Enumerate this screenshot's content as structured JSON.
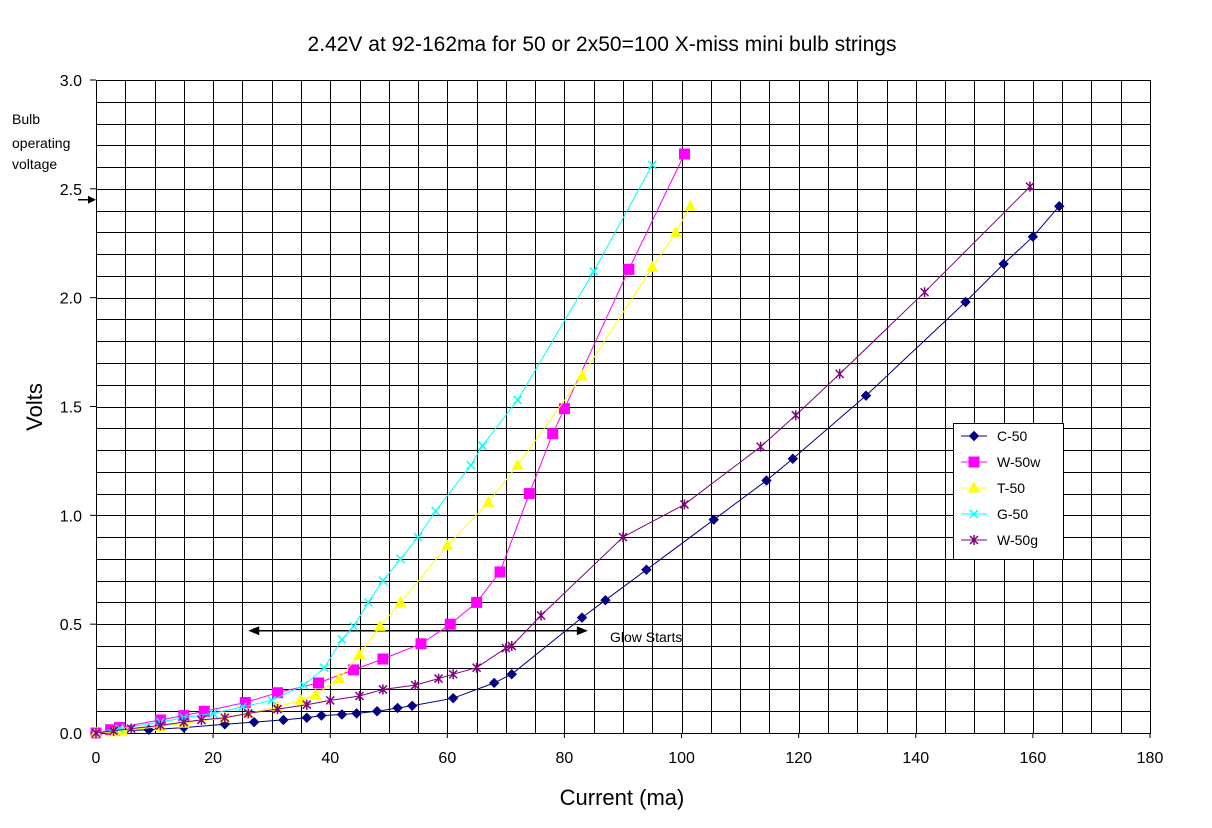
{
  "chart_data": {
    "type": "line",
    "title": "2.42V at 92-162ma for 50 or 2x50=100 X-miss mini bulb strings",
    "xlabel": "Current (ma)",
    "ylabel": "Volts",
    "xlim": [
      0,
      180
    ],
    "ylim": [
      0,
      3.0
    ],
    "x_ticks": [
      0,
      20,
      40,
      60,
      80,
      100,
      120,
      140,
      160,
      180
    ],
    "y_ticks": [
      "0.0",
      "0.5",
      "1.0",
      "1.5",
      "2.0",
      "2.5",
      "3.0"
    ],
    "grid": true,
    "legend_position": "right",
    "annotations": {
      "bulb_voltage_label": [
        "Bulb",
        "operating",
        "voltage"
      ],
      "bulb_voltage_value": 2.45,
      "glow_starts_label": "Glow Starts",
      "glow_starts_range": [
        26,
        84
      ],
      "glow_starts_y": 0.47
    },
    "series": [
      {
        "name": "C-50",
        "color": "#000080",
        "marker": "diamond",
        "points": [
          [
            0,
            0
          ],
          [
            4,
            0.01
          ],
          [
            9,
            0.015
          ],
          [
            15,
            0.025
          ],
          [
            22,
            0.04
          ],
          [
            27,
            0.05
          ],
          [
            32,
            0.06
          ],
          [
            36,
            0.07
          ],
          [
            38.5,
            0.08
          ],
          [
            42,
            0.085
          ],
          [
            44.5,
            0.09
          ],
          [
            48,
            0.1
          ],
          [
            51.5,
            0.115
          ],
          [
            54,
            0.125
          ],
          [
            61,
            0.16
          ],
          [
            68,
            0.23
          ],
          [
            71,
            0.27
          ],
          [
            83,
            0.53
          ],
          [
            87,
            0.61
          ],
          [
            94,
            0.75
          ],
          [
            105.5,
            0.98
          ],
          [
            114.5,
            1.16
          ],
          [
            119,
            1.26
          ],
          [
            131.5,
            1.55
          ],
          [
            148.5,
            1.98
          ],
          [
            155,
            2.155
          ],
          [
            160,
            2.28
          ],
          [
            164.5,
            2.42
          ]
        ]
      },
      {
        "name": "W-50w",
        "color": "#ff00ff",
        "marker": "square",
        "points": [
          [
            0,
            0
          ],
          [
            2.5,
            0.015
          ],
          [
            4,
            0.025
          ],
          [
            11,
            0.06
          ],
          [
            15,
            0.08
          ],
          [
            18.5,
            0.1
          ],
          [
            25.5,
            0.14
          ],
          [
            31,
            0.185
          ],
          [
            38,
            0.23
          ],
          [
            44,
            0.29
          ],
          [
            49,
            0.34
          ],
          [
            55.5,
            0.41
          ],
          [
            60.5,
            0.5
          ],
          [
            65,
            0.6
          ],
          [
            69,
            0.74
          ],
          [
            74,
            1.1
          ],
          [
            78,
            1.375
          ],
          [
            80,
            1.49
          ],
          [
            91,
            2.13
          ],
          [
            100.5,
            2.66
          ]
        ]
      },
      {
        "name": "T-50",
        "color": "#ffff00",
        "marker": "triangle",
        "points": [
          [
            0,
            0
          ],
          [
            3,
            0.005
          ],
          [
            4.5,
            0.01
          ],
          [
            11,
            0.03
          ],
          [
            15,
            0.045
          ],
          [
            22,
            0.07
          ],
          [
            26,
            0.09
          ],
          [
            31,
            0.12
          ],
          [
            35,
            0.15
          ],
          [
            37.5,
            0.175
          ],
          [
            41.5,
            0.25
          ],
          [
            45,
            0.36
          ],
          [
            48.5,
            0.49
          ],
          [
            52,
            0.6
          ],
          [
            60,
            0.86
          ],
          [
            67,
            1.06
          ],
          [
            72,
            1.23
          ],
          [
            83,
            1.64
          ],
          [
            95,
            2.14
          ],
          [
            99,
            2.3
          ],
          [
            101.5,
            2.42
          ]
        ]
      },
      {
        "name": "G-50",
        "color": "#00ffff",
        "marker": "x",
        "points": [
          [
            0,
            0
          ],
          [
            4,
            0.02
          ],
          [
            11,
            0.05
          ],
          [
            15,
            0.07
          ],
          [
            20,
            0.09
          ],
          [
            25,
            0.12
          ],
          [
            30,
            0.15
          ],
          [
            35.5,
            0.22
          ],
          [
            39,
            0.3
          ],
          [
            42,
            0.43
          ],
          [
            44,
            0.49
          ],
          [
            46.5,
            0.6
          ],
          [
            49,
            0.7
          ],
          [
            52,
            0.8
          ],
          [
            55,
            0.9
          ],
          [
            58,
            1.02
          ],
          [
            64,
            1.23
          ],
          [
            66,
            1.32
          ],
          [
            72,
            1.53
          ],
          [
            85,
            2.12
          ],
          [
            95,
            2.61
          ]
        ]
      },
      {
        "name": "W-50g",
        "color": "#800080",
        "marker": "star",
        "points": [
          [
            0,
            0
          ],
          [
            3,
            0.01
          ],
          [
            6,
            0.02
          ],
          [
            11,
            0.035
          ],
          [
            15,
            0.05
          ],
          [
            18,
            0.06
          ],
          [
            22,
            0.07
          ],
          [
            26,
            0.09
          ],
          [
            31,
            0.11
          ],
          [
            36,
            0.13
          ],
          [
            40,
            0.15
          ],
          [
            45,
            0.17
          ],
          [
            49,
            0.2
          ],
          [
            54.5,
            0.22
          ],
          [
            58.5,
            0.25
          ],
          [
            61,
            0.27
          ],
          [
            65,
            0.3
          ],
          [
            70,
            0.39
          ],
          [
            71,
            0.4
          ],
          [
            76,
            0.54
          ],
          [
            90,
            0.9
          ],
          [
            100.5,
            1.05
          ],
          [
            113.5,
            1.315
          ],
          [
            119.5,
            1.46
          ],
          [
            127,
            1.65
          ],
          [
            141.5,
            2.025
          ],
          [
            159.5,
            2.51
          ]
        ]
      }
    ]
  }
}
